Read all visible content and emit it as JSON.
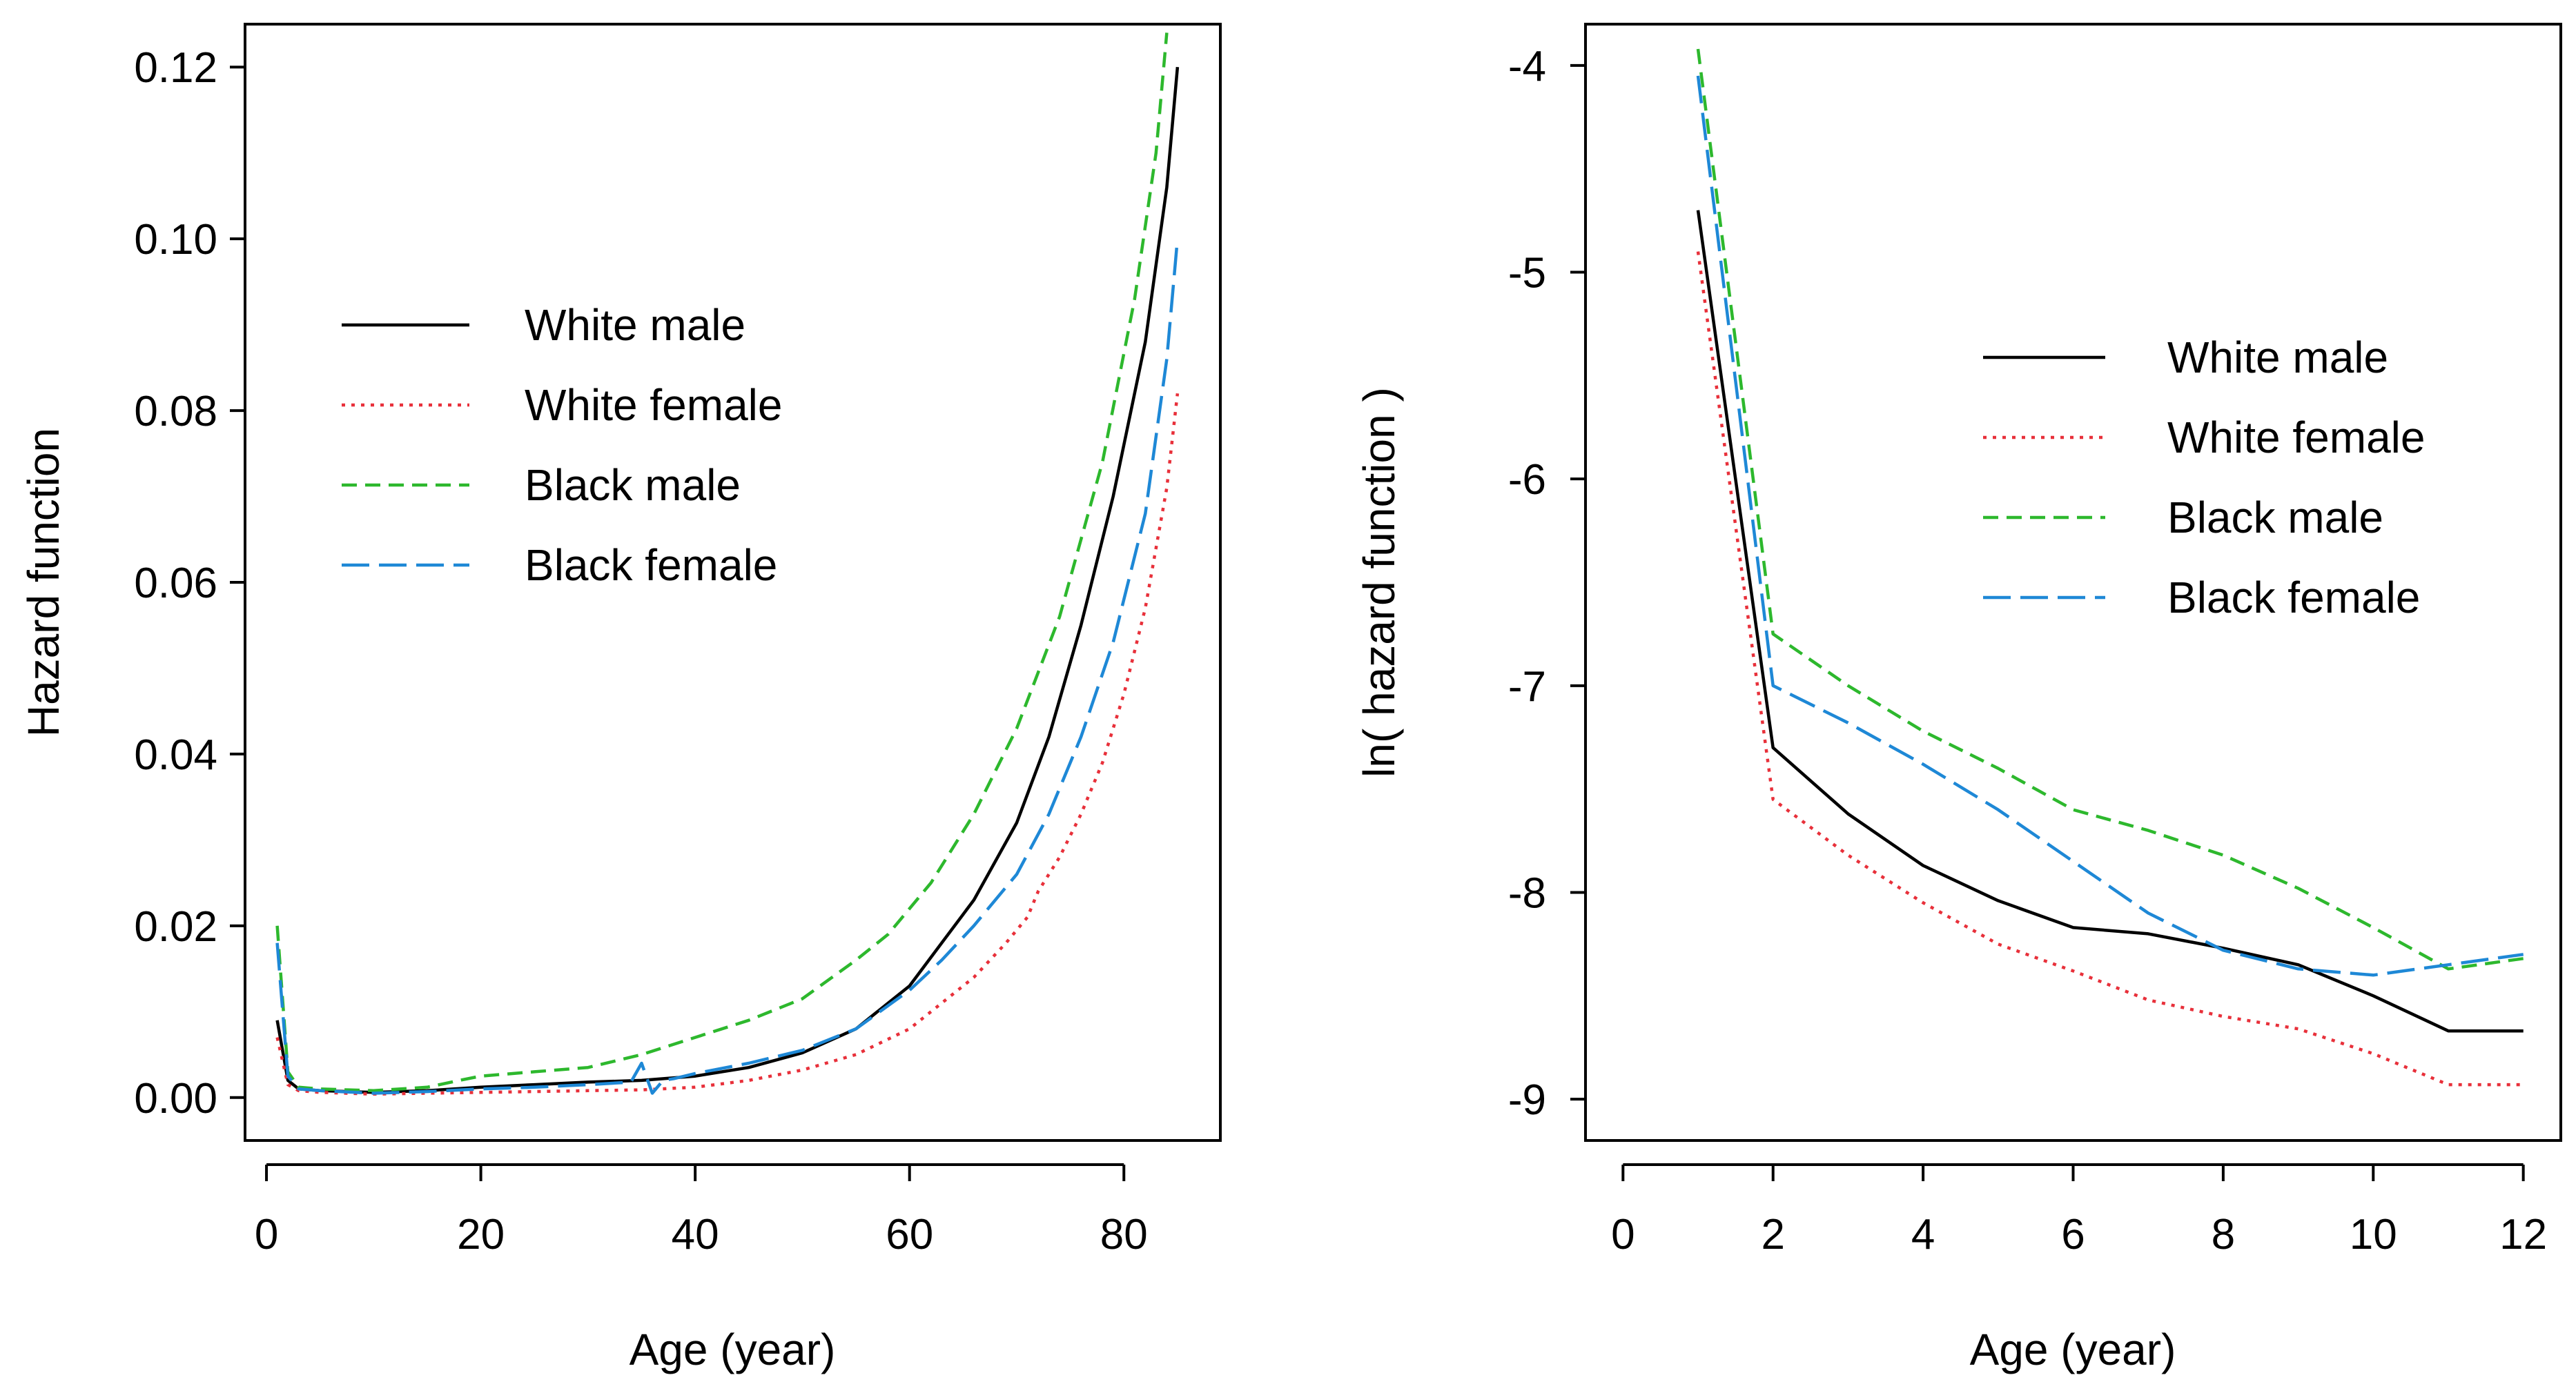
{
  "chart_data": [
    {
      "type": "line",
      "xlabel": "Age (year)",
      "ylabel": "Hazard function",
      "xlim": [
        -2,
        89
      ],
      "ylim": [
        -0.005,
        0.125
      ],
      "xticks": [
        0,
        20,
        40,
        60,
        80
      ],
      "yticks": [
        0.0,
        0.02,
        0.04,
        0.06,
        0.08,
        0.1,
        0.12
      ],
      "ytick_labels": [
        "0.00",
        "0.02",
        "0.04",
        "0.06",
        "0.08",
        "0.10",
        "0.12"
      ],
      "legend": "upper-left",
      "grid": false,
      "series": [
        {
          "name": "White male",
          "color": "#000000",
          "dash": "solid",
          "x": [
            1,
            2,
            3,
            5,
            10,
            15,
            20,
            25,
            30,
            35,
            40,
            45,
            50,
            55,
            60,
            63,
            66,
            70,
            73,
            76,
            79,
            82,
            84,
            85
          ],
          "y": [
            0.009,
            0.002,
            0.001,
            0.0008,
            0.0006,
            0.0008,
            0.0012,
            0.0015,
            0.0018,
            0.002,
            0.0025,
            0.0035,
            0.0052,
            0.008,
            0.013,
            0.018,
            0.023,
            0.032,
            0.042,
            0.055,
            0.07,
            0.088,
            0.106,
            0.12
          ]
        },
        {
          "name": "White female",
          "color": "#e8303a",
          "dash": "dotted",
          "x": [
            1,
            2,
            3,
            5,
            10,
            15,
            20,
            25,
            30,
            35,
            40,
            45,
            50,
            55,
            60,
            63,
            66,
            69,
            71,
            72,
            74,
            76,
            78,
            80,
            82,
            84,
            85
          ],
          "y": [
            0.007,
            0.0015,
            0.0008,
            0.0006,
            0.0004,
            0.0005,
            0.0006,
            0.0007,
            0.0008,
            0.0009,
            0.0012,
            0.002,
            0.0032,
            0.005,
            0.008,
            0.011,
            0.014,
            0.018,
            0.021,
            0.024,
            0.028,
            0.033,
            0.039,
            0.047,
            0.057,
            0.071,
            0.082
          ]
        },
        {
          "name": "Black male",
          "color": "#2db82d",
          "dash": "dashed",
          "x": [
            1,
            2,
            3,
            5,
            10,
            15,
            18,
            20,
            25,
            30,
            35,
            40,
            45,
            50,
            55,
            58,
            62,
            66,
            70,
            74,
            78,
            81,
            83,
            84
          ],
          "y": [
            0.02,
            0.003,
            0.0012,
            0.001,
            0.0008,
            0.0012,
            0.002,
            0.0025,
            0.003,
            0.0035,
            0.005,
            0.007,
            0.009,
            0.0115,
            0.016,
            0.019,
            0.025,
            0.033,
            0.043,
            0.056,
            0.074,
            0.093,
            0.11,
            0.124
          ]
        },
        {
          "name": "Black female",
          "color": "#1e88d6",
          "dash": "longdash",
          "x": [
            1,
            2,
            3,
            5,
            10,
            15,
            20,
            25,
            30,
            34,
            35,
            36,
            37,
            38,
            40,
            45,
            50,
            55,
            60,
            63,
            66,
            70,
            73,
            76,
            79,
            82,
            84,
            85
          ],
          "y": [
            0.018,
            0.0025,
            0.001,
            0.0008,
            0.0005,
            0.0007,
            0.001,
            0.0012,
            0.0015,
            0.0018,
            0.004,
            0.0005,
            0.002,
            0.0022,
            0.0028,
            0.004,
            0.0055,
            0.008,
            0.0125,
            0.016,
            0.02,
            0.026,
            0.033,
            0.042,
            0.053,
            0.068,
            0.086,
            0.1
          ]
        }
      ]
    },
    {
      "type": "line",
      "xlabel": "Age (year)",
      "ylabel": "ln( hazard function )",
      "xlim": [
        -0.5,
        12.5
      ],
      "ylim": [
        -9.2,
        -3.8
      ],
      "xticks": [
        0,
        2,
        4,
        6,
        8,
        10,
        12
      ],
      "yticks": [
        -9,
        -8,
        -7,
        -6,
        -5,
        -4
      ],
      "legend": "upper-right",
      "grid": false,
      "series": [
        {
          "name": "White male",
          "color": "#000000",
          "dash": "solid",
          "x": [
            1,
            2,
            3,
            4,
            5,
            6,
            7,
            8,
            9,
            10,
            11,
            12
          ],
          "y": [
            -4.7,
            -7.3,
            -7.62,
            -7.87,
            -8.04,
            -8.17,
            -8.2,
            -8.27,
            -8.35,
            -8.5,
            -8.67,
            -8.67
          ]
        },
        {
          "name": "White female",
          "color": "#e8303a",
          "dash": "dotted",
          "x": [
            1,
            2,
            3,
            4,
            5,
            6,
            7,
            8,
            9,
            10,
            11,
            12
          ],
          "y": [
            -4.9,
            -7.55,
            -7.82,
            -8.05,
            -8.25,
            -8.38,
            -8.52,
            -8.6,
            -8.66,
            -8.78,
            -8.93,
            -8.93
          ]
        },
        {
          "name": "Black male",
          "color": "#2db82d",
          "dash": "dashed",
          "x": [
            1,
            2,
            3,
            4,
            5,
            6,
            7,
            8,
            9,
            10,
            11,
            12
          ],
          "y": [
            -3.92,
            -6.75,
            -7.0,
            -7.22,
            -7.4,
            -7.6,
            -7.7,
            -7.82,
            -7.98,
            -8.17,
            -8.37,
            -8.32
          ]
        },
        {
          "name": "Black female",
          "color": "#1e88d6",
          "dash": "longdash",
          "x": [
            1,
            2,
            3,
            4,
            5,
            6,
            7,
            8,
            9,
            10,
            11,
            12
          ],
          "y": [
            -4.05,
            -7.0,
            -7.18,
            -7.38,
            -7.6,
            -7.85,
            -8.1,
            -8.28,
            -8.37,
            -8.4,
            -8.35,
            -8.3
          ]
        }
      ]
    }
  ]
}
